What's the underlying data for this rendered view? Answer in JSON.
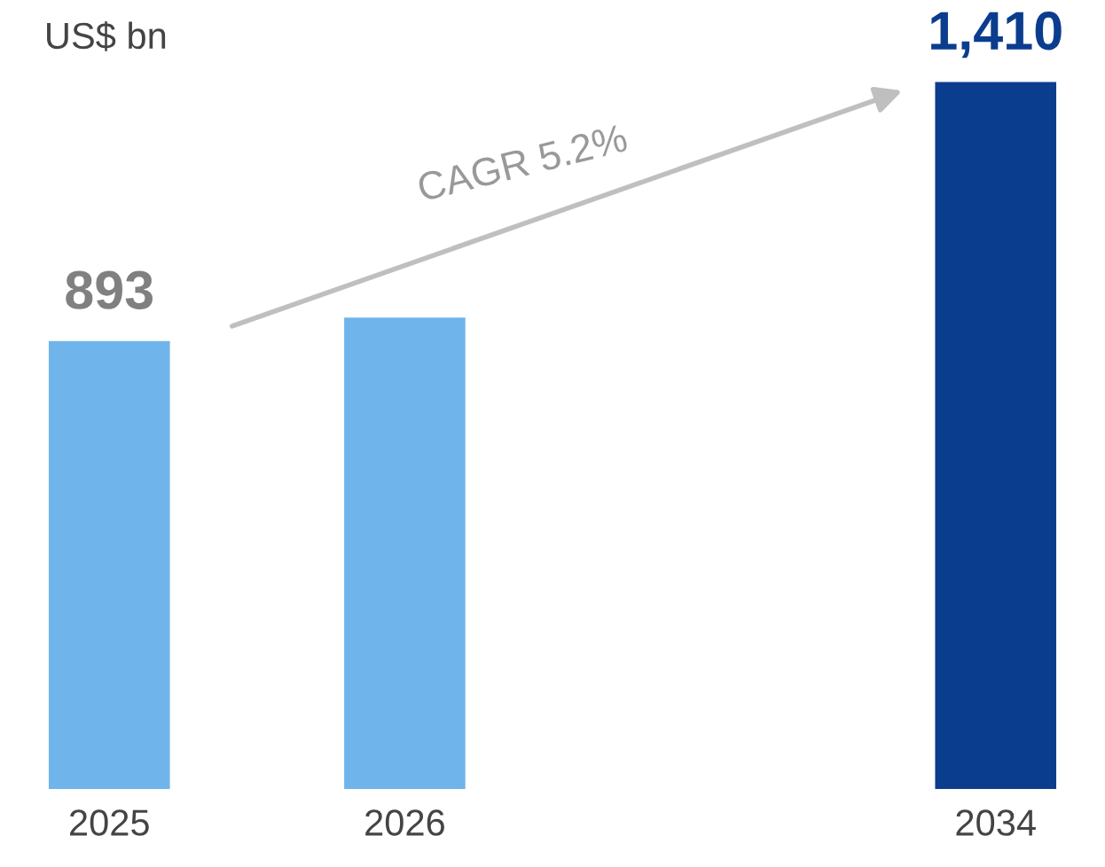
{
  "chart_data": {
    "type": "bar",
    "ylabel": "US$ bn",
    "categories": [
      "2025",
      "2026",
      null,
      "2034"
    ],
    "values": [
      893,
      940,
      null,
      1410
    ],
    "colors": [
      "#6fb4ea",
      "#6fb4ea",
      null,
      "#0b3d8f"
    ],
    "value_labels": [
      "893",
      null,
      null,
      "1,410"
    ],
    "annotations": [
      "CAGR 5.2%"
    ],
    "grid": false,
    "legend": false
  }
}
